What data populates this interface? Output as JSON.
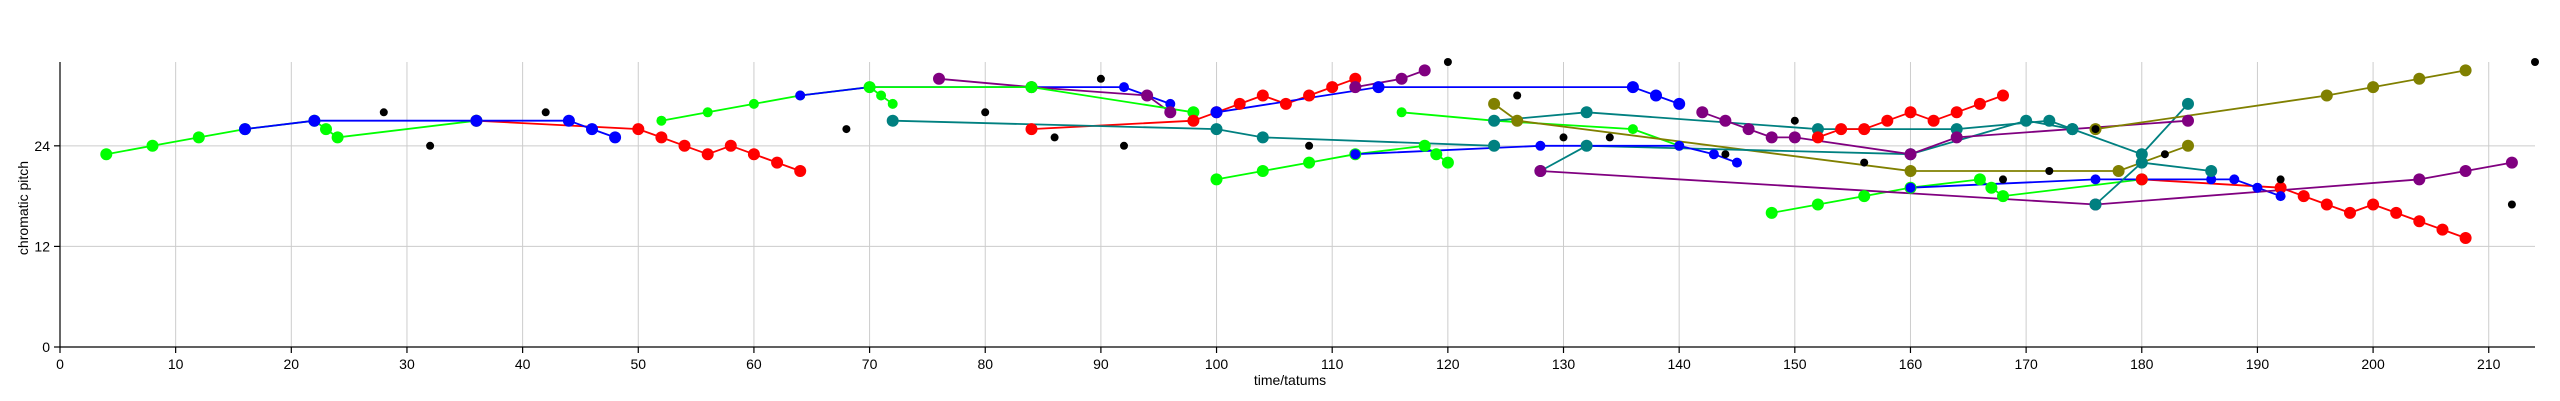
{
  "chart_data": {
    "type": "line",
    "xlabel": "time/tatums",
    "ylabel": "chromatic pitch",
    "xlim": [
      0,
      214
    ],
    "ylim": [
      0,
      34
    ],
    "xticks": [
      "0",
      "10",
      "20",
      "30",
      "40",
      "50",
      "60",
      "70",
      "80",
      "90",
      "100",
      "110",
      "120",
      "130",
      "140",
      "150",
      "160",
      "170",
      "180",
      "190",
      "200",
      "210"
    ],
    "yticks": [
      "0",
      "12",
      "24"
    ],
    "ytick_values": [
      0,
      12,
      24
    ],
    "grid": true,
    "series": [
      {
        "color": "#ff0000",
        "marker_size": 6,
        "x": [
          36,
          50,
          52,
          54,
          56,
          58,
          60,
          62,
          64
        ],
        "y": [
          27,
          26,
          25,
          24,
          23,
          24,
          23,
          22,
          21
        ]
      },
      {
        "color": "#00ff00",
        "marker_size": 6,
        "x": [
          4,
          8,
          12,
          16,
          22,
          23,
          24,
          36
        ],
        "y": [
          23,
          24,
          25,
          26,
          27,
          26,
          25,
          27
        ]
      },
      {
        "color": "#0000ff",
        "marker_size": 6,
        "x": [
          16,
          22,
          36,
          44,
          46,
          48
        ],
        "y": [
          26,
          27,
          27,
          27,
          26,
          25
        ]
      },
      {
        "color": "#00ff00",
        "marker_size": 5,
        "x": [
          52,
          56,
          60,
          64,
          70,
          71,
          72
        ],
        "y": [
          27,
          28,
          29,
          30,
          31,
          30,
          29
        ]
      },
      {
        "color": "#0000ff",
        "marker_size": 5,
        "x": [
          64,
          70,
          84,
          92,
          94,
          96
        ],
        "y": [
          30,
          31,
          31,
          31,
          30,
          29
        ]
      },
      {
        "color": "#800080",
        "marker_size": 6,
        "x": [
          76,
          84,
          94,
          96
        ],
        "y": [
          32,
          31,
          30,
          28
        ]
      },
      {
        "color": "#00ff00",
        "marker_size": 6,
        "x": [
          70,
          84,
          98
        ],
        "y": [
          31,
          31,
          28
        ]
      },
      {
        "color": "#ff0000",
        "marker_size": 6,
        "x": [
          84,
          98,
          100,
          102,
          104,
          106,
          108,
          110,
          112
        ],
        "y": [
          26,
          27,
          28,
          29,
          30,
          29,
          30,
          31,
          32
        ]
      },
      {
        "color": "#008080",
        "marker_size": 6,
        "x": [
          72,
          100,
          104,
          124
        ],
        "y": [
          27,
          26,
          25,
          24
        ]
      },
      {
        "color": "#0000ff",
        "marker_size": 6,
        "x": [
          100,
          114,
          136,
          138,
          140
        ],
        "y": [
          28,
          31,
          31,
          30,
          29
        ]
      },
      {
        "color": "#800080",
        "marker_size": 6,
        "x": [
          112,
          116,
          118
        ],
        "y": [
          31,
          32,
          33
        ]
      },
      {
        "color": "#00ff00",
        "marker_size": 6,
        "x": [
          100,
          104,
          108,
          112,
          118,
          119,
          120
        ],
        "y": [
          20,
          21,
          22,
          23,
          24,
          23,
          22
        ]
      },
      {
        "color": "#00ff00",
        "marker_size": 5,
        "x": [
          116,
          124,
          136,
          140
        ],
        "y": [
          28,
          27,
          26,
          24
        ]
      },
      {
        "color": "#808000",
        "marker_size": 6,
        "x": [
          124,
          126,
          160,
          178,
          184
        ],
        "y": [
          29,
          27,
          21,
          21,
          24
        ]
      },
      {
        "color": "#008080",
        "marker_size": 6,
        "x": [
          128,
          132,
          160,
          170,
          174
        ],
        "y": [
          21,
          24,
          23,
          27,
          26
        ]
      },
      {
        "color": "#0000ff",
        "marker_size": 5,
        "x": [
          112,
          128,
          140,
          143,
          145
        ],
        "y": [
          23,
          24,
          24,
          23,
          22
        ]
      },
      {
        "color": "#008080",
        "marker_size": 6,
        "x": [
          124,
          132,
          152,
          164,
          172,
          174,
          180,
          184
        ],
        "y": [
          27,
          28,
          26,
          26,
          27,
          26,
          23,
          29
        ]
      },
      {
        "color": "#800080",
        "marker_size": 6,
        "x": [
          142,
          144,
          146,
          148,
          150,
          160,
          164,
          184
        ],
        "y": [
          28,
          27,
          26,
          25,
          25,
          23,
          25,
          27
        ]
      },
      {
        "color": "#00ff00",
        "marker_size": 6,
        "x": [
          148,
          152,
          156,
          160,
          166,
          167,
          168,
          180
        ],
        "y": [
          16,
          17,
          18,
          19,
          20,
          19,
          18,
          20
        ]
      },
      {
        "color": "#ff0000",
        "marker_size": 6,
        "x": [
          152,
          154,
          156,
          158,
          160,
          162,
          164,
          166,
          168
        ],
        "y": [
          25,
          26,
          26,
          27,
          28,
          27,
          28,
          29,
          30
        ]
      },
      {
        "color": "#808000",
        "marker_size": 6,
        "x": [
          176,
          196,
          200,
          204,
          208
        ],
        "y": [
          26,
          30,
          31,
          32,
          33
        ]
      },
      {
        "color": "#ff0000",
        "marker_size": 6,
        "x": [
          180,
          192,
          194,
          196,
          198,
          200,
          202,
          204,
          206,
          208
        ],
        "y": [
          20,
          19,
          18,
          17,
          16,
          17,
          16,
          15,
          14,
          13
        ]
      },
      {
        "color": "#0000ff",
        "marker_size": 5,
        "x": [
          160,
          176,
          186,
          188,
          190,
          192
        ],
        "y": [
          19,
          20,
          20,
          20,
          19,
          18
        ]
      },
      {
        "color": "#800080",
        "marker_size": 6,
        "x": [
          128,
          176,
          204,
          208,
          212
        ],
        "y": [
          21,
          17,
          20,
          21,
          22
        ]
      },
      {
        "color": "#008080",
        "marker_size": 6,
        "x": [
          176,
          180,
          186
        ],
        "y": [
          17,
          22,
          21
        ]
      },
      {
        "color": "#000000",
        "marker_size": 4,
        "line": false,
        "x": [
          28,
          32,
          42,
          68,
          80,
          86,
          90,
          92,
          108,
          120,
          126,
          130,
          134,
          144,
          150,
          156,
          168,
          172,
          176,
          182,
          192,
          212,
          214
        ],
        "y": [
          28,
          24,
          28,
          26,
          28,
          25,
          32,
          24,
          24,
          34,
          30,
          25,
          25,
          23,
          27,
          22,
          20,
          21,
          26,
          23,
          20,
          17,
          34
        ]
      }
    ]
  }
}
